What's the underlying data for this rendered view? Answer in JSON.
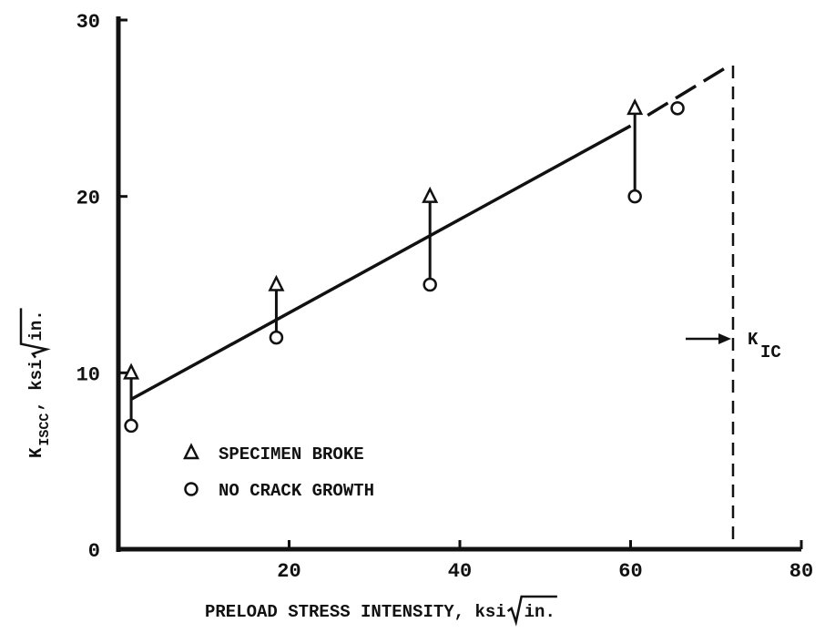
{
  "chart_data": {
    "type": "scatter",
    "xlim": [
      0,
      80
    ],
    "ylim": [
      0,
      30
    ],
    "xticks": [
      20,
      40,
      60,
      80
    ],
    "yticks": [
      0,
      10,
      20,
      30
    ],
    "x_label": {
      "main": "PRELOAD STRESS INTENSITY, ksi",
      "radicand": "in."
    },
    "y_label": {
      "main": "K",
      "sub": "ISCC",
      "rest": ", ksi",
      "radicand": "in."
    },
    "series": [
      {
        "name": "SPECIMEN BROKE",
        "marker": "triangle",
        "color": "#111111",
        "x": [
          1.5,
          18.5,
          36.5,
          60.5
        ],
        "values": [
          10,
          15,
          20,
          25
        ]
      },
      {
        "name": "NO CRACK GROWTH",
        "marker": "circle",
        "color": "#111111",
        "x": [
          1.5,
          18.5,
          36.5,
          60.5,
          65.5
        ],
        "values": [
          7,
          12,
          15,
          20,
          25
        ]
      }
    ],
    "trend": {
      "x": [
        1.5,
        60
      ],
      "values": [
        8.5,
        24
      ]
    },
    "trend_extrapolated": {
      "x": [
        62,
        71.5
      ],
      "values": [
        24.6,
        27.4
      ]
    },
    "kic": {
      "x": 72,
      "main": "K",
      "sub": "IC"
    }
  }
}
